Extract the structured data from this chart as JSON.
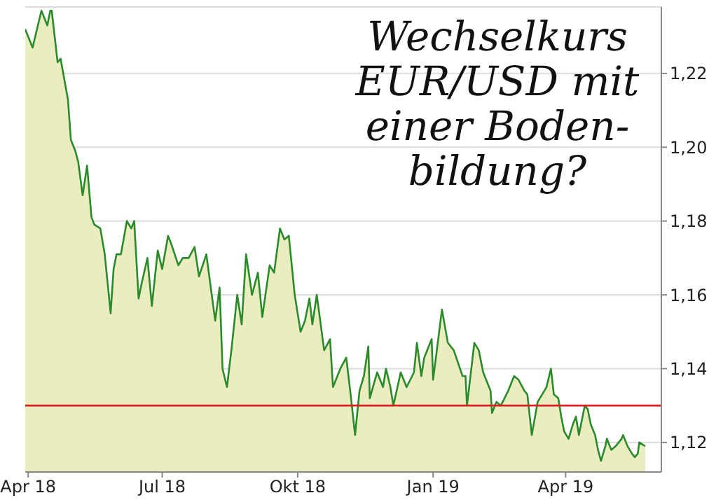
{
  "chart_data": {
    "type": "area",
    "title": "Wechselkurs EUR/USD mit einer Boden-bildung?",
    "x": [
      "2018-03-30",
      "2018-04-04",
      "2018-04-10",
      "2018-04-14",
      "2018-04-16",
      "2018-04-17",
      "2018-04-21",
      "2018-04-23",
      "2018-04-28",
      "2018-04-30",
      "2018-05-03",
      "2018-05-05",
      "2018-05-08",
      "2018-05-11",
      "2018-05-14",
      "2018-05-16",
      "2018-05-20",
      "2018-05-23",
      "2018-05-27",
      "2018-05-29",
      "2018-05-31",
      "2018-06-03",
      "2018-06-07",
      "2018-06-10",
      "2018-06-12",
      "2018-06-15",
      "2018-06-17",
      "2018-06-21",
      "2018-06-24",
      "2018-06-28",
      "2018-07-01",
      "2018-07-05",
      "2018-07-07",
      "2018-07-12",
      "2018-07-15",
      "2018-07-19",
      "2018-07-23",
      "2018-07-26",
      "2018-07-31",
      "2018-08-03",
      "2018-08-06",
      "2018-08-09",
      "2018-08-11",
      "2018-08-14",
      "2018-08-17",
      "2018-08-21",
      "2018-08-24",
      "2018-08-27",
      "2018-08-31",
      "2018-09-04",
      "2018-09-07",
      "2018-09-12",
      "2018-09-15",
      "2018-09-19",
      "2018-09-22",
      "2018-09-25",
      "2018-09-29",
      "2018-10-03",
      "2018-10-06",
      "2018-10-09",
      "2018-10-11",
      "2018-10-14",
      "2018-10-19",
      "2018-10-23",
      "2018-10-25",
      "2018-10-30",
      "2018-11-03",
      "2018-11-06",
      "2018-11-09",
      "2018-11-12",
      "2018-11-15",
      "2018-11-18",
      "2018-11-19",
      "2018-11-24",
      "2018-11-28",
      "2018-11-30",
      "2018-12-03",
      "2018-12-05",
      "2018-12-10",
      "2018-12-14",
      "2018-12-19",
      "2018-12-21",
      "2018-12-24",
      "2018-12-26",
      "2018-12-31",
      "2019-01-01",
      "2019-01-07",
      "2019-01-11",
      "2019-01-15",
      "2019-01-21",
      "2019-01-23",
      "2019-01-24",
      "2019-01-29",
      "2019-02-01",
      "2019-02-04",
      "2019-02-09",
      "2019-02-10",
      "2019-02-13",
      "2019-02-16",
      "2019-02-21",
      "2019-02-25",
      "2019-02-28",
      "2019-03-04",
      "2019-03-06",
      "2019-03-09",
      "2019-03-13",
      "2019-03-16",
      "2019-03-19",
      "2019-03-22",
      "2019-03-24",
      "2019-03-27",
      "2019-03-29",
      "2019-03-31",
      "2019-04-03",
      "2019-04-06",
      "2019-04-08",
      "2019-04-10",
      "2019-04-13",
      "2019-04-14",
      "2019-04-16",
      "2019-04-18",
      "2019-04-21",
      "2019-04-23",
      "2019-04-25",
      "2019-04-28",
      "2019-04-29",
      "2019-05-02",
      "2019-05-05",
      "2019-05-09",
      "2019-05-10",
      "2019-05-13",
      "2019-05-16",
      "2019-05-18",
      "2019-05-20",
      "2019-05-21",
      "2019-05-25"
    ],
    "series": [
      {
        "color": "#2b8a2b",
        "values": [
          1.232,
          1.227,
          1.237,
          1.233,
          1.237,
          1.237,
          1.223,
          1.224,
          1.213,
          1.202,
          1.199,
          1.196,
          1.187,
          1.195,
          1.181,
          1.179,
          1.178,
          1.171,
          1.155,
          1.167,
          1.171,
          1.171,
          1.18,
          1.178,
          1.18,
          1.159,
          1.163,
          1.17,
          1.157,
          1.172,
          1.167,
          1.176,
          1.174,
          1.168,
          1.17,
          1.17,
          1.173,
          1.165,
          1.171,
          1.162,
          1.153,
          1.162,
          1.14,
          1.135,
          1.145,
          1.16,
          1.152,
          1.171,
          1.16,
          1.166,
          1.154,
          1.168,
          1.166,
          1.178,
          1.175,
          1.176,
          1.16,
          1.15,
          1.153,
          1.159,
          1.152,
          1.16,
          1.145,
          1.148,
          1.135,
          1.14,
          1.143,
          1.133,
          1.122,
          1.134,
          1.138,
          1.146,
          1.132,
          1.139,
          1.135,
          1.14,
          1.135,
          1.13,
          1.139,
          1.135,
          1.139,
          1.147,
          1.138,
          1.143,
          1.148,
          1.137,
          1.156,
          1.147,
          1.145,
          1.138,
          1.138,
          1.13,
          1.147,
          1.145,
          1.139,
          1.134,
          1.128,
          1.131,
          1.13,
          1.134,
          1.138,
          1.137,
          1.134,
          1.133,
          1.122,
          1.131,
          1.133,
          1.135,
          1.14,
          1.133,
          1.132,
          1.127,
          1.123,
          1.121,
          1.125,
          1.127,
          1.122,
          1.128,
          1.13,
          1.129,
          1.125,
          1.122,
          1.118,
          1.115,
          1.119,
          1.121,
          1.118,
          1.119,
          1.121,
          1.122,
          1.119,
          1.117,
          1.116,
          1.117,
          1.12,
          1.119
        ]
      }
    ],
    "xlim": [
      "2018-03-30",
      "2019-06-05"
    ],
    "xticks": [
      {
        "value": "2018-04-01",
        "label": "Apr 18"
      },
      {
        "value": "2018-07-01",
        "label": "Jul 18"
      },
      {
        "value": "2018-10-01",
        "label": "Okt 18"
      },
      {
        "value": "2019-01-01",
        "label": "Jan 19"
      },
      {
        "value": "2019-04-01",
        "label": "Apr 19"
      }
    ],
    "ylim": [
      1.112,
      1.238
    ],
    "yticks": [
      {
        "value": 1.12,
        "label": "1,12"
      },
      {
        "value": 1.14,
        "label": "1,14"
      },
      {
        "value": 1.16,
        "label": "1,16"
      },
      {
        "value": 1.18,
        "label": "1,18"
      },
      {
        "value": 1.2,
        "label": "1,20"
      },
      {
        "value": 1.22,
        "label": "1,22"
      }
    ],
    "grid": "y",
    "ref_lines": [
      {
        "axis": "y",
        "value": 1.13,
        "color": "#e02020"
      }
    ],
    "legend": false
  }
}
